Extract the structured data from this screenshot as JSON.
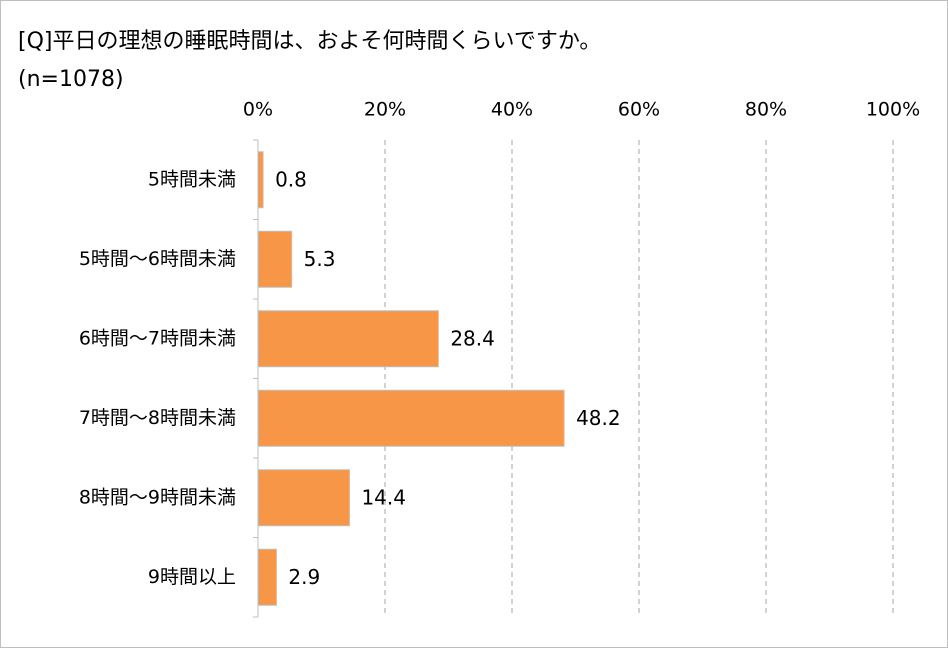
{
  "chart_data": {
    "type": "hbar",
    "title": "[Q]平日の理想の睡眠時間は、およそ何時間くらいですか。",
    "subtitle": "(n=1078)",
    "categories": [
      "5時間未満",
      "5時間～6時間未満",
      "6時間～7時間未満",
      "7時間～8時間未満",
      "8時間～9時間未満",
      "9時間以上"
    ],
    "values": [
      0.8,
      5.3,
      28.4,
      48.2,
      14.4,
      2.9
    ],
    "color": "#f79646",
    "xlim": [
      0,
      100
    ],
    "xticks": [
      {
        "value": 0,
        "label": "0%"
      },
      {
        "value": 20,
        "label": "20%"
      },
      {
        "value": 40,
        "label": "40%"
      },
      {
        "value": 60,
        "label": "60%"
      },
      {
        "value": 80,
        "label": "80%"
      },
      {
        "value": 100,
        "label": "100%"
      }
    ],
    "grid": true
  }
}
